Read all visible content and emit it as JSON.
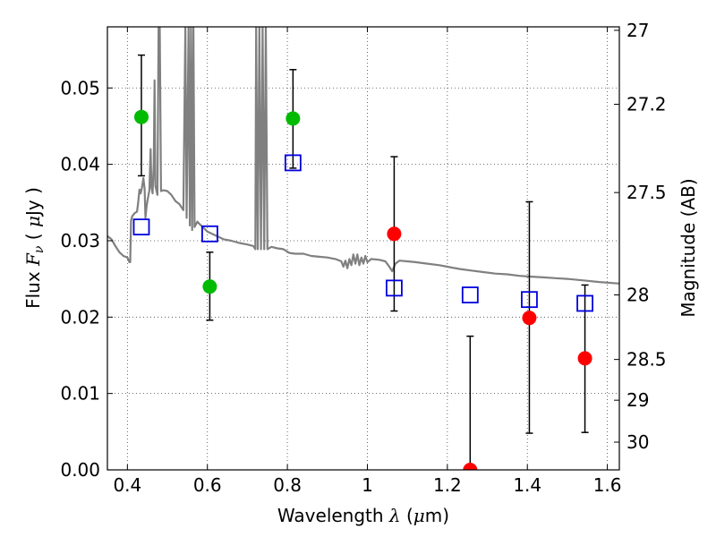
{
  "chart_data": {
    "type": "scatter",
    "xlabel": {
      "pre": "Wavelength  ",
      "sym": "λ",
      "pre_unit": " (",
      "mu": "μ",
      "unit": "m)"
    },
    "ylabel": {
      "pre": "Flux  ",
      "sym": "F",
      "sub": "ν",
      "mid": "  ( ",
      "mu": "μ",
      "unit": "Jy )"
    },
    "y2label": "Magnitude (AB)",
    "xlim": [
      0.35,
      1.63
    ],
    "ylim": [
      0.0,
      0.058
    ],
    "x_ticks": [
      0.4,
      0.6,
      0.8,
      1.0,
      1.2,
      1.4,
      1.6
    ],
    "x_tick_labels": [
      "0.4",
      "0.6",
      "0.8",
      "1",
      "1.2",
      "1.4",
      "1.6"
    ],
    "y_ticks": [
      0.0,
      0.01,
      0.02,
      0.03,
      0.04,
      0.05
    ],
    "y_tick_labels": [
      "0.00",
      "0.01",
      "0.02",
      "0.03",
      "0.04",
      "0.05"
    ],
    "y2_ticks": [
      27,
      27.2,
      27.5,
      28,
      28.5,
      29,
      30
    ],
    "y2_tick_labels": [
      "27",
      "27.2",
      "27.5",
      "28",
      "28.5",
      "29",
      "30"
    ],
    "grid": true,
    "colors": {
      "green": "#00bb00",
      "red": "#ff0000",
      "blue": "#0000dd",
      "model": "#808080",
      "errorbar": "#000000"
    },
    "series": [
      {
        "marker": "circle",
        "color": "green",
        "points": [
          {
            "x": 0.435,
            "y": 0.0462,
            "ylo": 0.0385,
            "yhi": 0.0543
          },
          {
            "x": 0.606,
            "y": 0.024,
            "ylo": 0.0196,
            "yhi": 0.0285
          },
          {
            "x": 0.814,
            "y": 0.046,
            "ylo": 0.0395,
            "yhi": 0.0524
          }
        ]
      },
      {
        "marker": "circle",
        "color": "red",
        "points": [
          {
            "x": 1.067,
            "y": 0.0309,
            "ylo": 0.0208,
            "yhi": 0.041
          },
          {
            "x": 1.257,
            "y": 0.0,
            "ylo": 0.0,
            "yhi": 0.0175
          },
          {
            "x": 1.405,
            "y": 0.0199,
            "ylo": 0.0048,
            "yhi": 0.0351
          },
          {
            "x": 1.544,
            "y": 0.0146,
            "ylo": 0.0049,
            "yhi": 0.0242
          }
        ]
      },
      {
        "marker": "square",
        "color": "blue",
        "points": [
          {
            "x": 0.435,
            "y": 0.0318
          },
          {
            "x": 0.606,
            "y": 0.0309
          },
          {
            "x": 0.814,
            "y": 0.0402
          },
          {
            "x": 1.067,
            "y": 0.0238
          },
          {
            "x": 1.257,
            "y": 0.0229
          },
          {
            "x": 1.405,
            "y": 0.0223
          },
          {
            "x": 1.544,
            "y": 0.0218
          }
        ]
      }
    ],
    "model_spectrum": {
      "color": "model",
      "points": [
        [
          0.35,
          0.0306
        ],
        [
          0.36,
          0.0302
        ],
        [
          0.37,
          0.0293
        ],
        [
          0.38,
          0.0285
        ],
        [
          0.39,
          0.028
        ],
        [
          0.4,
          0.0278
        ],
        [
          0.405,
          0.0272
        ],
        [
          0.407,
          0.0272
        ],
        [
          0.409,
          0.0326
        ],
        [
          0.412,
          0.0332
        ],
        [
          0.418,
          0.0336
        ],
        [
          0.424,
          0.0338
        ],
        [
          0.427,
          0.035
        ],
        [
          0.43,
          0.0367
        ],
        [
          0.433,
          0.0362
        ],
        [
          0.436,
          0.0368
        ],
        [
          0.44,
          0.0382
        ],
        [
          0.443,
          0.0368
        ],
        [
          0.445,
          0.033
        ],
        [
          0.448,
          0.0345
        ],
        [
          0.45,
          0.0352
        ],
        [
          0.455,
          0.0366
        ],
        [
          0.458,
          0.042
        ],
        [
          0.46,
          0.037
        ],
        [
          0.463,
          0.0362
        ],
        [
          0.466,
          0.04
        ],
        [
          0.468,
          0.051
        ],
        [
          0.47,
          0.0372
        ],
        [
          0.475,
          0.036
        ],
        [
          0.478,
          0.058
        ],
        [
          0.481,
          0.058
        ],
        [
          0.484,
          0.0365
        ],
        [
          0.49,
          0.0366
        ],
        [
          0.5,
          0.0365
        ],
        [
          0.51,
          0.036
        ],
        [
          0.52,
          0.0352
        ],
        [
          0.53,
          0.0348
        ],
        [
          0.54,
          0.034
        ],
        [
          0.545,
          0.058
        ],
        [
          0.548,
          0.033
        ],
        [
          0.553,
          0.058
        ],
        [
          0.556,
          0.032
        ],
        [
          0.559,
          0.058
        ],
        [
          0.562,
          0.0314
        ],
        [
          0.565,
          0.058
        ],
        [
          0.568,
          0.0318
        ],
        [
          0.575,
          0.0325
        ],
        [
          0.58,
          0.0322
        ],
        [
          0.59,
          0.0317
        ],
        [
          0.6,
          0.0312
        ],
        [
          0.62,
          0.0307
        ],
        [
          0.64,
          0.0302
        ],
        [
          0.66,
          0.03
        ],
        [
          0.68,
          0.0297
        ],
        [
          0.7,
          0.0295
        ],
        [
          0.715,
          0.0293
        ],
        [
          0.72,
          0.0289
        ],
        [
          0.722,
          0.058
        ],
        [
          0.726,
          0.0289
        ],
        [
          0.73,
          0.058
        ],
        [
          0.734,
          0.0289
        ],
        [
          0.738,
          0.058
        ],
        [
          0.742,
          0.0289
        ],
        [
          0.746,
          0.058
        ],
        [
          0.75,
          0.0289
        ],
        [
          0.76,
          0.0292
        ],
        [
          0.775,
          0.029
        ],
        [
          0.79,
          0.0289
        ],
        [
          0.805,
          0.0284
        ],
        [
          0.82,
          0.0283
        ],
        [
          0.84,
          0.0283
        ],
        [
          0.86,
          0.028
        ],
        [
          0.88,
          0.0279
        ],
        [
          0.9,
          0.0278
        ],
        [
          0.92,
          0.0276
        ],
        [
          0.935,
          0.0273
        ],
        [
          0.94,
          0.0266
        ],
        [
          0.945,
          0.0274
        ],
        [
          0.95,
          0.0264
        ],
        [
          0.955,
          0.0276
        ],
        [
          0.96,
          0.0268
        ],
        [
          0.965,
          0.0282
        ],
        [
          0.97,
          0.027
        ],
        [
          0.975,
          0.0282
        ],
        [
          0.98,
          0.0268
        ],
        [
          0.985,
          0.0278
        ],
        [
          0.99,
          0.027
        ],
        [
          0.995,
          0.028
        ],
        [
          1.0,
          0.0272
        ],
        [
          1.01,
          0.0276
        ],
        [
          1.03,
          0.0275
        ],
        [
          1.045,
          0.0273
        ],
        [
          1.055,
          0.0266
        ],
        [
          1.062,
          0.026
        ],
        [
          1.07,
          0.027
        ],
        [
          1.08,
          0.0274
        ],
        [
          1.1,
          0.0273
        ],
        [
          1.12,
          0.0272
        ],
        [
          1.15,
          0.027
        ],
        [
          1.18,
          0.0268
        ],
        [
          1.2,
          0.0266
        ],
        [
          1.23,
          0.0263
        ],
        [
          1.26,
          0.0261
        ],
        [
          1.29,
          0.0259
        ],
        [
          1.32,
          0.0257
        ],
        [
          1.35,
          0.0256
        ],
        [
          1.38,
          0.0254
        ],
        [
          1.41,
          0.0253
        ],
        [
          1.44,
          0.0252
        ],
        [
          1.47,
          0.0251
        ],
        [
          1.5,
          0.025
        ],
        [
          1.54,
          0.0248
        ],
        [
          1.58,
          0.0246
        ],
        [
          1.63,
          0.0244
        ]
      ]
    }
  }
}
